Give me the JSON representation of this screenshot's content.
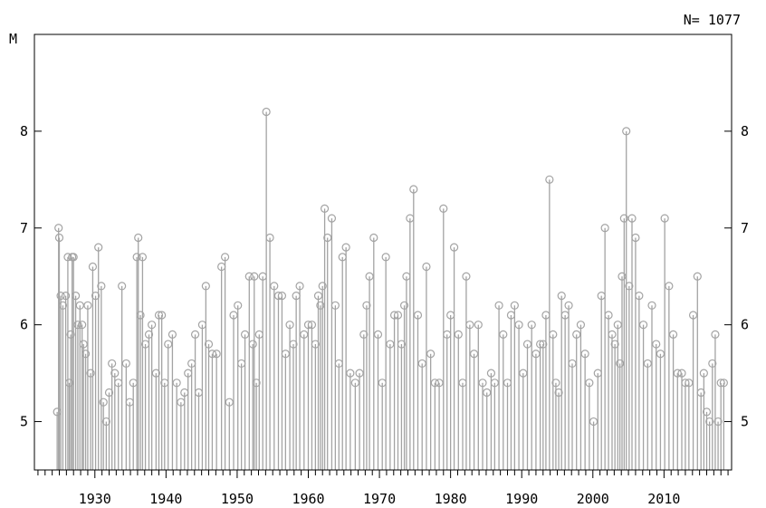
{
  "chart_data": {
    "type": "scatter",
    "style": "stem",
    "ylabel": "M",
    "count_label": "N= 1077",
    "x_ticks": [
      1930,
      1940,
      1950,
      1960,
      1970,
      1980,
      1990,
      2000,
      2010
    ],
    "y_ticks": [
      5,
      6,
      7,
      8
    ],
    "xlim": [
      1921.5,
      2019.5
    ],
    "ylim": [
      4.5,
      9.0
    ],
    "colors": {
      "stem": "#a3a3a3",
      "marker": "#a3a3a3",
      "axis": "#000000"
    },
    "x": [
      1924.7,
      1924.9,
      1925.0,
      1925.2,
      1925.5,
      1925.9,
      1926.2,
      1926.4,
      1926.6,
      1926.8,
      1927.0,
      1927.3,
      1927.6,
      1927.9,
      1928.2,
      1928.4,
      1928.7,
      1929.0,
      1929.4,
      1929.7,
      1930.1,
      1930.5,
      1930.9,
      1931.2,
      1931.6,
      1932.0,
      1932.4,
      1932.8,
      1933.3,
      1933.8,
      1934.4,
      1934.9,
      1935.4,
      1935.9,
      1936.1,
      1936.4,
      1936.7,
      1937.1,
      1937.6,
      1938.0,
      1938.6,
      1939.0,
      1939.4,
      1939.8,
      1940.3,
      1940.9,
      1941.5,
      1942.1,
      1942.6,
      1943.1,
      1943.6,
      1944.1,
      1944.6,
      1945.1,
      1945.6,
      1946.0,
      1946.5,
      1947.1,
      1947.8,
      1948.3,
      1948.9,
      1949.5,
      1950.1,
      1950.6,
      1951.1,
      1951.7,
      1952.2,
      1952.4,
      1952.7,
      1953.1,
      1953.6,
      1954.1,
      1954.6,
      1955.2,
      1955.8,
      1956.3,
      1956.8,
      1957.4,
      1957.9,
      1958.3,
      1958.8,
      1959.4,
      1960.0,
      1960.5,
      1961.0,
      1961.4,
      1961.7,
      1962.0,
      1962.3,
      1962.7,
      1963.3,
      1963.8,
      1964.3,
      1964.8,
      1965.3,
      1965.9,
      1966.6,
      1967.2,
      1967.8,
      1968.2,
      1968.6,
      1969.2,
      1969.8,
      1970.4,
      1970.9,
      1971.5,
      1972.1,
      1972.6,
      1973.1,
      1973.5,
      1973.8,
      1974.3,
      1974.8,
      1975.4,
      1976.0,
      1976.6,
      1977.2,
      1977.8,
      1978.4,
      1979.0,
      1979.5,
      1980.0,
      1980.5,
      1981.1,
      1981.7,
      1982.2,
      1982.7,
      1983.3,
      1983.9,
      1984.5,
      1985.1,
      1985.7,
      1986.2,
      1986.8,
      1987.4,
      1988.0,
      1988.5,
      1989.0,
      1989.6,
      1990.2,
      1990.8,
      1991.4,
      1992.0,
      1992.6,
      1993.0,
      1993.4,
      1993.9,
      1994.4,
      1994.8,
      1995.2,
      1995.6,
      1996.1,
      1996.6,
      1997.1,
      1997.7,
      1998.3,
      1998.9,
      1999.5,
      2000.1,
      2000.7,
      2001.2,
      2001.7,
      2002.2,
      2002.7,
      2003.1,
      2003.5,
      2003.8,
      2004.1,
      2004.4,
      2004.7,
      2005.1,
      2005.5,
      2006.0,
      2006.5,
      2007.1,
      2007.7,
      2008.3,
      2008.9,
      2009.5,
      2010.1,
      2010.7,
      2011.3,
      2011.9,
      2012.5,
      2013.0,
      2013.5,
      2014.1,
      2014.7,
      2015.2,
      2015.6,
      2016.0,
      2016.4,
      2016.8,
      2017.2,
      2017.6,
      2018.0,
      2018.4
    ],
    "y": [
      5.1,
      7.0,
      6.9,
      6.3,
      6.2,
      6.3,
      6.7,
      5.4,
      5.9,
      6.7,
      6.7,
      6.3,
      6.0,
      6.2,
      6.0,
      5.8,
      5.7,
      6.2,
      5.5,
      6.6,
      6.3,
      6.8,
      6.4,
      5.2,
      5.0,
      5.3,
      5.6,
      5.5,
      5.4,
      6.4,
      5.6,
      5.2,
      5.4,
      6.7,
      6.9,
      6.1,
      6.7,
      5.8,
      5.9,
      6.0,
      5.5,
      6.1,
      6.1,
      5.4,
      5.8,
      5.9,
      5.4,
      5.2,
      5.3,
      5.5,
      5.6,
      5.9,
      5.3,
      6.0,
      6.4,
      5.8,
      5.7,
      5.7,
      6.6,
      6.7,
      5.2,
      6.1,
      6.2,
      5.6,
      5.9,
      6.5,
      5.8,
      6.5,
      5.4,
      5.9,
      6.5,
      8.2,
      6.9,
      6.4,
      6.3,
      6.3,
      5.7,
      6.0,
      5.8,
      6.3,
      6.4,
      5.9,
      6.0,
      6.0,
      5.8,
      6.3,
      6.2,
      6.4,
      7.2,
      6.9,
      7.1,
      6.2,
      5.6,
      6.7,
      6.8,
      5.5,
      5.4,
      5.5,
      5.9,
      6.2,
      6.5,
      6.9,
      5.9,
      5.4,
      6.7,
      5.8,
      6.1,
      6.1,
      5.8,
      6.2,
      6.5,
      7.1,
      7.4,
      6.1,
      5.6,
      6.6,
      5.7,
      5.4,
      5.4,
      7.2,
      5.9,
      6.1,
      6.8,
      5.9,
      5.4,
      6.5,
      6.0,
      5.7,
      6.0,
      5.4,
      5.3,
      5.5,
      5.4,
      6.2,
      5.9,
      5.4,
      6.1,
      6.2,
      6.0,
      5.5,
      5.8,
      6.0,
      5.7,
      5.8,
      5.8,
      6.1,
      7.5,
      5.9,
      5.4,
      5.3,
      6.3,
      6.1,
      6.2,
      5.6,
      5.9,
      6.0,
      5.7,
      5.4,
      5.0,
      5.5,
      6.3,
      7.0,
      6.1,
      5.9,
      5.8,
      6.0,
      5.6,
      6.5,
      7.1,
      8.0,
      6.4,
      7.1,
      6.9,
      6.3,
      6.0,
      5.6,
      6.2,
      5.8,
      5.7,
      7.1,
      6.4,
      5.9,
      5.5,
      5.5,
      5.4,
      5.4,
      6.1,
      6.5,
      5.3,
      5.5,
      5.1,
      5.0,
      5.6,
      5.9,
      5.0,
      5.4,
      5.4
    ]
  }
}
